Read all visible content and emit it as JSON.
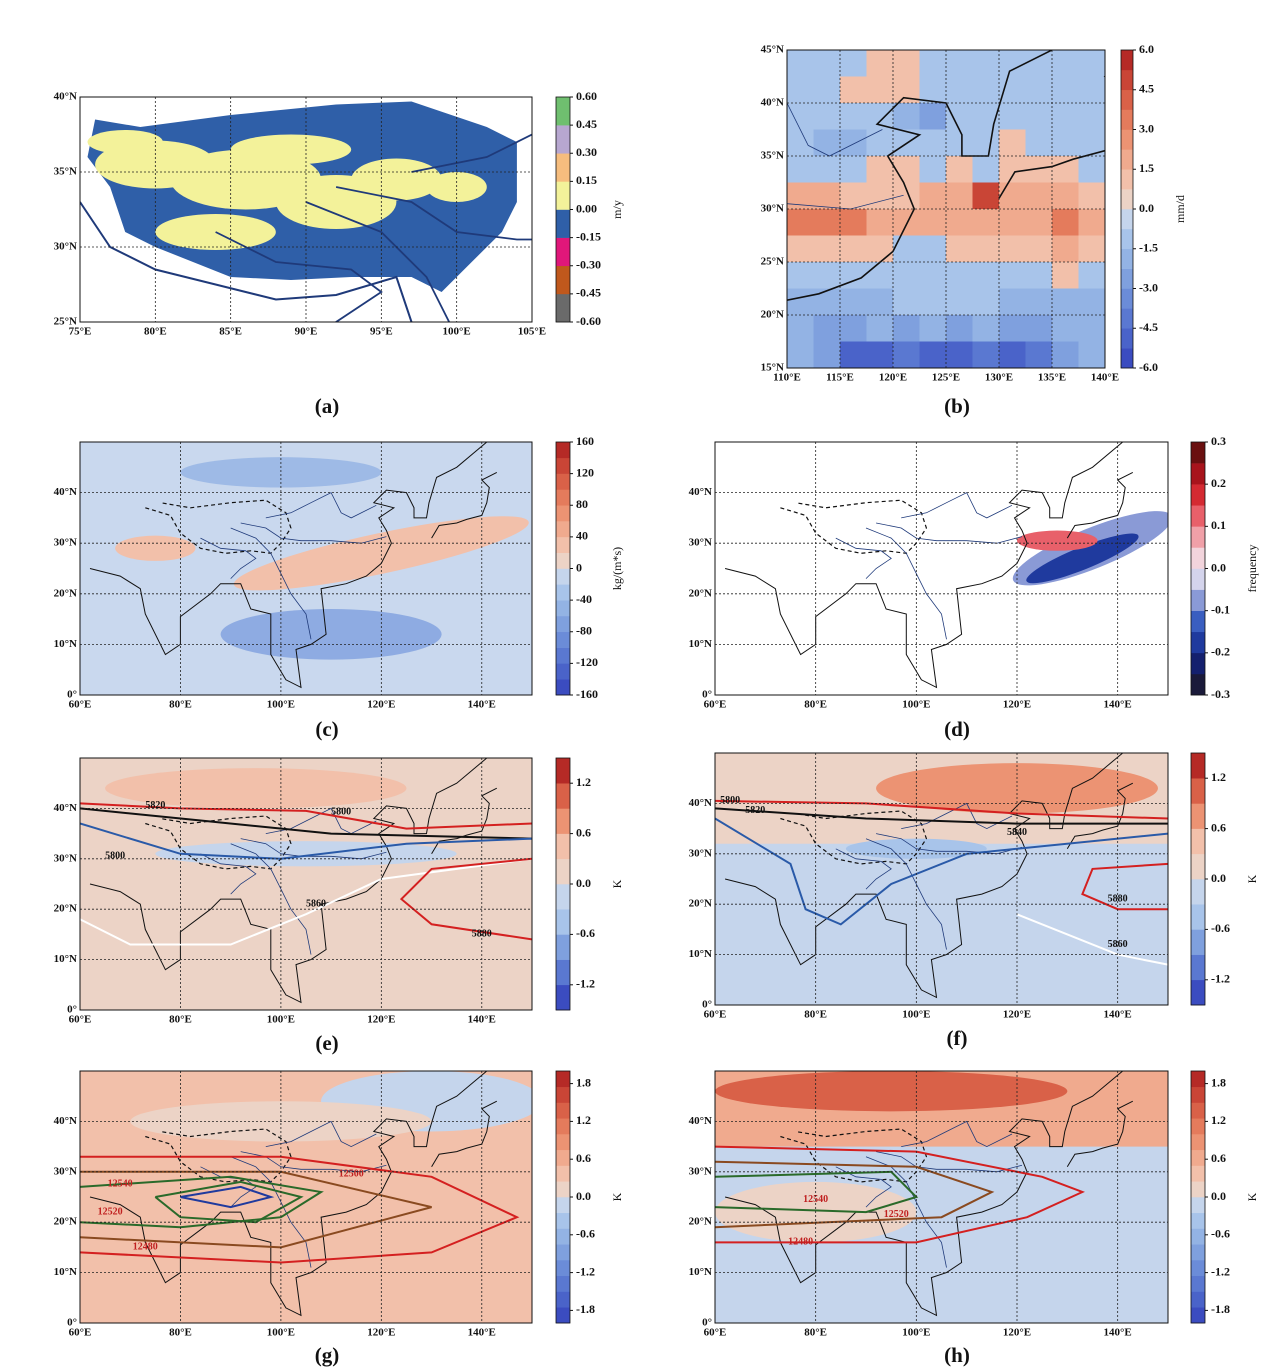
{
  "panels": [
    {
      "label": "(a)",
      "xlim": [
        75,
        105
      ],
      "ylim": [
        25,
        40
      ],
      "xticks": [
        {
          "value": 75,
          "label": "75°E"
        },
        {
          "value": 80,
          "label": "80°E"
        },
        {
          "value": 85,
          "label": "85°E"
        },
        {
          "value": 90,
          "label": "90°E"
        },
        {
          "value": 95,
          "label": "95°E"
        },
        {
          "value": 100,
          "label": "100°E"
        },
        {
          "value": 105,
          "label": "105°E"
        }
      ],
      "yticks": [
        {
          "value": 25,
          "label": "25°N"
        },
        {
          "value": 30,
          "label": "30°N"
        },
        {
          "value": 35,
          "label": "35°N"
        },
        {
          "value": 40,
          "label": "40°N"
        }
      ],
      "colorbar": {
        "lim": [
          -0.6,
          0.6
        ],
        "unit": "m/y",
        "ticks": [
          {
            "value": 0.6,
            "label": "0.60"
          },
          {
            "value": 0.45,
            "label": "0.45"
          },
          {
            "value": 0.3,
            "label": "0.30"
          },
          {
            "value": 0.15,
            "label": "0.15"
          },
          {
            "value": 0,
            "label": "0.00"
          },
          {
            "value": -0.15,
            "label": "-0.15"
          },
          {
            "value": -0.3,
            "label": "-0.30"
          },
          {
            "value": -0.45,
            "label": "-0.45"
          },
          {
            "value": -0.6,
            "label": "-0.60"
          }
        ],
        "colors": [
          "#6a6a6a",
          "#c0581c",
          "#e0177a",
          "#2f5fa8",
          "#f3f29a",
          "#f6bd7e",
          "#b7a7d0",
          "#6fbf6f"
        ]
      }
    },
    {
      "label": "(b)",
      "xlim": [
        110,
        140
      ],
      "ylim": [
        15,
        45
      ],
      "xticks": [
        {
          "value": 110,
          "label": "110°E"
        },
        {
          "value": 115,
          "label": "115°E"
        },
        {
          "value": 120,
          "label": "120°E"
        },
        {
          "value": 125,
          "label": "125°E"
        },
        {
          "value": 130,
          "label": "130°E"
        },
        {
          "value": 135,
          "label": "135°E"
        },
        {
          "value": 140,
          "label": "140°E"
        }
      ],
      "yticks": [
        {
          "value": 15,
          "label": "15°N"
        },
        {
          "value": 20,
          "label": "20°N"
        },
        {
          "value": 25,
          "label": "25°N"
        },
        {
          "value": 30,
          "label": "30°N"
        },
        {
          "value": 35,
          "label": "35°N"
        },
        {
          "value": 40,
          "label": "40°N"
        },
        {
          "value": 45,
          "label": "45°N"
        }
      ],
      "grid_values": [
        [
          -1,
          -1,
          -1,
          0.8,
          0.8,
          -1,
          -1,
          -1,
          -1,
          -1,
          -1,
          -1
        ],
        [
          -1,
          -1,
          0.8,
          0.8,
          0.8,
          -1,
          -1,
          -1,
          -1,
          -1,
          -1,
          -1
        ],
        [
          -1,
          -1,
          -1,
          -1,
          -2,
          -3,
          -1,
          -1,
          -1,
          -1,
          -1,
          -1
        ],
        [
          -1,
          -2,
          -2,
          -1,
          -1,
          -1,
          -1,
          -1,
          1,
          -1,
          -1,
          -1
        ],
        [
          -1,
          -1,
          -1,
          0.8,
          0.8,
          -1,
          0.8,
          -1,
          0.8,
          0.8,
          1,
          -1
        ],
        [
          2,
          2,
          1,
          1,
          1,
          2,
          2,
          4.5,
          2,
          2,
          2,
          1
        ],
        [
          3,
          3,
          3,
          1.5,
          2,
          2,
          2,
          2,
          2,
          2,
          3,
          2
        ],
        [
          1,
          1,
          0.8,
          0.8,
          -1,
          -1,
          1,
          1,
          1,
          1,
          2,
          1
        ],
        [
          -1,
          -1,
          -1,
          -1,
          -1,
          -1,
          -1,
          -1,
          -1,
          -1,
          1,
          -1
        ],
        [
          -2,
          -2,
          -2,
          -2,
          -1.5,
          -1.5,
          -1,
          -1,
          -2,
          -2,
          -2,
          -2
        ],
        [
          -2,
          -3,
          -3,
          -2,
          -3,
          -2,
          -3,
          -2,
          -3,
          -3,
          -2,
          -2
        ],
        [
          -2,
          -3,
          -5,
          -5,
          -4,
          -5,
          -5,
          -4,
          -5,
          -4,
          -3,
          -2
        ]
      ],
      "colorbar": {
        "lim": [
          -6,
          6
        ],
        "unit": "mm/d",
        "ticks": [
          {
            "value": 6,
            "label": "6.0"
          },
          4.5,
          {
            "value": 3,
            "label": "3.0"
          },
          1.5,
          {
            "value": 0,
            "label": "0.0"
          },
          -1.5,
          {
            "value": -3,
            "label": "-3.0"
          },
          -4.5,
          {
            "value": -6,
            "label": "-6.0"
          }
        ],
        "colors": [
          "#3b4cc0",
          "#4a63c9",
          "#5a78d1",
          "#6b8cd8",
          "#7fa0de",
          "#93b3e4",
          "#a8c4ea",
          "#c5d5ec",
          "#ecd3c6",
          "#f2c0aa",
          "#f0aa8e",
          "#ec9373",
          "#e47b5c",
          "#d96148",
          "#c94536",
          "#b52a26"
        ]
      }
    },
    {
      "label": "(c)",
      "xlim": [
        60,
        150
      ],
      "ylim": [
        0,
        50
      ],
      "xticks": [
        {
          "value": 60,
          "label": "60°E"
        },
        {
          "value": 80,
          "label": "80°E"
        },
        {
          "value": 100,
          "label": "100°E"
        },
        {
          "value": 120,
          "label": "120°E"
        },
        {
          "value": 140,
          "label": "140°E"
        }
      ],
      "yticks": [
        {
          "value": 0,
          "label": "0°"
        },
        {
          "value": 10,
          "label": "10°N"
        },
        {
          "value": 20,
          "label": "20°N"
        },
        {
          "value": 30,
          "label": "30°N"
        },
        {
          "value": 40,
          "label": "40°N"
        }
      ],
      "colorbar": {
        "lim": [
          -160,
          160
        ],
        "unit": "kg/(m*s)",
        "ticks": [
          160,
          120,
          80,
          40,
          0,
          -40,
          -80,
          -120,
          -160
        ],
        "colors": [
          "#3b4cc0",
          "#4a63c9",
          "#5a78d1",
          "#6b8cd8",
          "#7fa0de",
          "#93b3e4",
          "#a8c4ea",
          "#c5d5ec",
          "#ecd3c6",
          "#f2c0aa",
          "#f0aa8e",
          "#ec9373",
          "#e47b5c",
          "#d96148",
          "#c94536",
          "#b52a26"
        ]
      }
    },
    {
      "label": "(d)",
      "xlim": [
        60,
        150
      ],
      "ylim": [
        0,
        50
      ],
      "xticks": [
        {
          "value": 60,
          "label": "60°E"
        },
        {
          "value": 80,
          "label": "80°E"
        },
        {
          "value": 100,
          "label": "100°E"
        },
        {
          "value": 120,
          "label": "120°E"
        },
        {
          "value": 140,
          "label": "140°E"
        }
      ],
      "yticks": [
        {
          "value": 0,
          "label": "0°"
        },
        {
          "value": 10,
          "label": "10°N"
        },
        {
          "value": 20,
          "label": "20°N"
        },
        {
          "value": 30,
          "label": "30°N"
        },
        {
          "value": 40,
          "label": "40°N"
        }
      ],
      "colorbar": {
        "lim": [
          -0.3,
          0.3
        ],
        "unit": "frequency",
        "ticks": [
          0.3,
          0.2,
          0.1,
          {
            "value": 0,
            "label": "0.0"
          },
          -0.1,
          -0.2,
          -0.3
        ],
        "colors": [
          "#1a1a3a",
          "#14206e",
          "#1f3a9e",
          "#3a5ec0",
          "#8a9ad6",
          "#d4d4ec",
          "#f2d4dc",
          "#f0a0a8",
          "#e8606a",
          "#d42a32",
          "#a8141c",
          "#6a1010"
        ]
      }
    },
    {
      "label": "(e)",
      "xlim": [
        60,
        150
      ],
      "ylim": [
        0,
        50
      ],
      "xticks": [
        {
          "value": 60,
          "label": "60°E"
        },
        {
          "value": 80,
          "label": "80°E"
        },
        {
          "value": 100,
          "label": "100°E"
        },
        {
          "value": 120,
          "label": "120°E"
        },
        {
          "value": 140,
          "label": "140°E"
        }
      ],
      "yticks": [
        {
          "value": 0,
          "label": "0°"
        },
        {
          "value": 10,
          "label": "10°N"
        },
        {
          "value": 20,
          "label": "20°N"
        },
        {
          "value": 30,
          "label": "30°N"
        },
        {
          "value": 40,
          "label": "40°N"
        }
      ],
      "contour_labels": [
        5820,
        5800,
        5800,
        5860,
        5880
      ],
      "colorbar": {
        "lim": [
          -1.5,
          1.5
        ],
        "unit": "K",
        "ticks": [
          1.2,
          0.6,
          {
            "value": 0,
            "label": "0.0"
          },
          -0.6,
          -1.2
        ],
        "colors": [
          "#3b4cc0",
          "#5a78d1",
          "#7fa0de",
          "#a8c4ea",
          "#c5d5ec",
          "#ecd3c6",
          "#f2c0aa",
          "#ec9373",
          "#d96148",
          "#b52a26"
        ]
      }
    },
    {
      "label": "(f)",
      "xlim": [
        60,
        150
      ],
      "ylim": [
        0,
        50
      ],
      "xticks": [
        {
          "value": 60,
          "label": "60°E"
        },
        {
          "value": 80,
          "label": "80°E"
        },
        {
          "value": 100,
          "label": "100°E"
        },
        {
          "value": 120,
          "label": "120°E"
        },
        {
          "value": 140,
          "label": "140°E"
        }
      ],
      "yticks": [
        {
          "value": 0,
          "label": "0°"
        },
        {
          "value": 10,
          "label": "10°N"
        },
        {
          "value": 20,
          "label": "20°N"
        },
        {
          "value": 30,
          "label": "30°N"
        },
        {
          "value": 40,
          "label": "40°N"
        }
      ],
      "contour_labels": [
        5800,
        5820,
        5840,
        5880,
        5860
      ],
      "colorbar": {
        "lim": [
          -1.5,
          1.5
        ],
        "unit": "K",
        "ticks": [
          1.2,
          0.6,
          {
            "value": 0,
            "label": "0.0"
          },
          -0.6,
          -1.2
        ],
        "colors": [
          "#3b4cc0",
          "#5a78d1",
          "#7fa0de",
          "#a8c4ea",
          "#c5d5ec",
          "#ecd3c6",
          "#f2c0aa",
          "#ec9373",
          "#d96148",
          "#b52a26"
        ]
      }
    },
    {
      "label": "(g)",
      "xlim": [
        60,
        150
      ],
      "ylim": [
        0,
        50
      ],
      "xticks": [
        {
          "value": 60,
          "label": "60°E"
        },
        {
          "value": 80,
          "label": "80°E"
        },
        {
          "value": 100,
          "label": "100°E"
        },
        {
          "value": 120,
          "label": "120°E"
        },
        {
          "value": 140,
          "label": "140°E"
        }
      ],
      "yticks": [
        {
          "value": 0,
          "label": "0°"
        },
        {
          "value": 10,
          "label": "10°N"
        },
        {
          "value": 20,
          "label": "20°N"
        },
        {
          "value": 30,
          "label": "30°N"
        },
        {
          "value": 40,
          "label": "40°N"
        }
      ],
      "contour_labels": [
        12540,
        12500,
        12520,
        12480
      ],
      "colorbar": {
        "lim": [
          -2,
          2
        ],
        "unit": "K",
        "ticks": [
          1.8,
          1.2,
          0.6,
          {
            "value": 0,
            "label": "0.0"
          },
          -0.6,
          -1.2,
          -1.8
        ],
        "colors": [
          "#3b4cc0",
          "#4a63c9",
          "#5a78d1",
          "#6b8cd8",
          "#7fa0de",
          "#93b3e4",
          "#a8c4ea",
          "#c5d5ec",
          "#ecd3c6",
          "#f2c0aa",
          "#f0aa8e",
          "#ec9373",
          "#e47b5c",
          "#d96148",
          "#c94536",
          "#b52a26"
        ]
      }
    },
    {
      "label": "(h)",
      "xlim": [
        60,
        150
      ],
      "ylim": [
        0,
        50
      ],
      "xticks": [
        {
          "value": 60,
          "label": "60°E"
        },
        {
          "value": 80,
          "label": "80°E"
        },
        {
          "value": 100,
          "label": "100°E"
        },
        {
          "value": 120,
          "label": "120°E"
        },
        {
          "value": 140,
          "label": "140°E"
        }
      ],
      "yticks": [
        {
          "value": 0,
          "label": "0°"
        },
        {
          "value": 10,
          "label": "10°N"
        },
        {
          "value": 20,
          "label": "20°N"
        },
        {
          "value": 30,
          "label": "30°N"
        },
        {
          "value": 40,
          "label": "40°N"
        }
      ],
      "contour_labels": [
        12540,
        12520,
        12480
      ],
      "colorbar": {
        "lim": [
          -2,
          2
        ],
        "unit": "K",
        "ticks": [
          1.8,
          1.2,
          0.6,
          {
            "value": 0,
            "label": "0.0"
          },
          -0.6,
          -1.2,
          -1.8
        ],
        "colors": [
          "#3b4cc0",
          "#4a63c9",
          "#5a78d1",
          "#6b8cd8",
          "#7fa0de",
          "#93b3e4",
          "#a8c4ea",
          "#c5d5ec",
          "#ecd3c6",
          "#f2c0aa",
          "#f0aa8e",
          "#ec9373",
          "#e47b5c",
          "#d96148",
          "#c94536",
          "#b52a26"
        ]
      }
    }
  ]
}
